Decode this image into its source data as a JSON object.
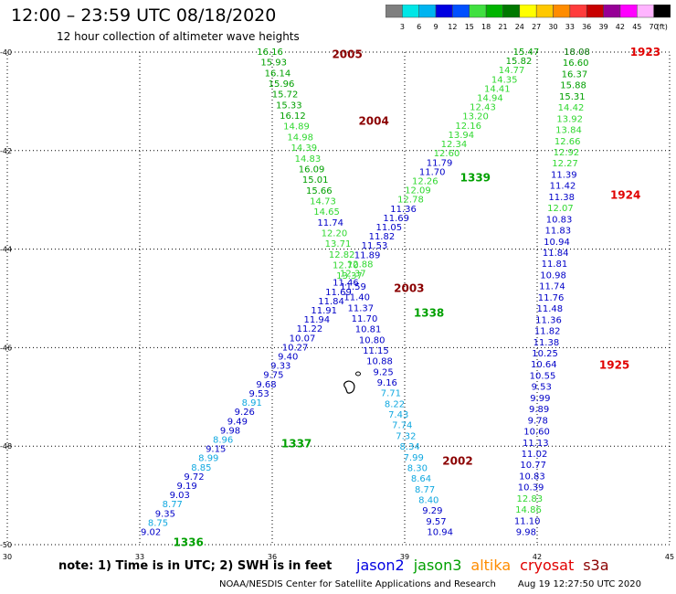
{
  "title": "12:00 – 23:59 UTC 08/18/2020",
  "subtitle": "12 hour collection of altimeter wave heights",
  "color_scale": {
    "colors": [
      "#7f7f7f",
      "#00e6e6",
      "#00b4f0",
      "#0000e1",
      "#0050ff",
      "#40e040",
      "#00b400",
      "#007800",
      "#ffff00",
      "#ffc800",
      "#ff8c00",
      "#ff3c3c",
      "#c80000",
      "#960096",
      "#ff00ff",
      "#ffb4ff",
      "#000000"
    ],
    "ticks": [
      "3",
      "6",
      "9",
      "12",
      "15",
      "18",
      "21",
      "24",
      "27",
      "30",
      "33",
      "36",
      "39",
      "42",
      "45",
      "70",
      "(ft)"
    ]
  },
  "axes": {
    "lat_labels": [
      "-40",
      "-42",
      "-44",
      "-46",
      "-48",
      "-50"
    ],
    "lon_labels": [
      "30",
      "33",
      "36",
      "39",
      "42",
      "45"
    ]
  },
  "note": "note: 1) Time is in UTC; 2) SWH is in feet",
  "legend": [
    {
      "name": "jason2",
      "color": "#0000e1"
    },
    {
      "name": "jason3",
      "color": "#00a000"
    },
    {
      "name": "altika",
      "color": "#ff8c00"
    },
    {
      "name": "cryosat",
      "color": "#e00000"
    },
    {
      "name": "s3a",
      "color": "#8b0000"
    }
  ],
  "footer": {
    "credit": "NOAA/NESDIS Center for Satellite Applications and Research",
    "timestamp": "Aug 19 12:27:50 UTC 2020"
  },
  "tracks": [
    {
      "name": "pass-2005-2003-2002",
      "values": [
        "16.16",
        "15.93",
        "16.14",
        "15.96",
        "15.72",
        "15.33",
        "16.12",
        "14.89",
        "14.98",
        "14.39",
        "14.83",
        "16.09",
        "15.01",
        "15.66",
        "14.73",
        "14.65",
        "11.74",
        "12.20",
        "13.71",
        "12.82",
        "12.70",
        "13.37",
        "11.59",
        "11.40",
        "11.37",
        "11.70",
        "10.81",
        "10.80",
        "11.15",
        "10.88",
        "9.25",
        "9.16",
        "7.71",
        "8.22",
        "7.43",
        "7.74",
        "7.32",
        "8.34",
        "7.99",
        "8.30",
        "8.64",
        "8.77",
        "8.40",
        "9.29",
        "9.57",
        "10.94"
      ],
      "start": {
        "lon": 35.95,
        "lat": -40.0
      },
      "end": {
        "lon": 39.8,
        "lat": -49.75
      }
    },
    {
      "name": "pass-1336-1338-1339",
      "values": [
        "15.47",
        "15.82",
        "14.77",
        "14.35",
        "14.41",
        "14.94",
        "12.43",
        "13.20",
        "12.16",
        "13.94",
        "12.34",
        "12.60",
        "11.79",
        "11.70",
        "12.26",
        "12.09",
        "12.78",
        "11.36",
        "11.69",
        "11.05",
        "11.82",
        "11.53",
        "11.89",
        "12.88",
        "12.37",
        "11.46",
        "11.69",
        "11.84",
        "11.91",
        "11.94",
        "11.22",
        "10.07",
        "10.27",
        "9.40",
        "9.33",
        "9.75",
        "9.68",
        "9.53",
        "8.91",
        "9.26",
        "9.49",
        "9.98",
        "8.96",
        "9.15",
        "8.99",
        "8.85",
        "9.72",
        "9.19",
        "9.03",
        "8.77",
        "9.35",
        "8.75",
        "9.02"
      ],
      "start": {
        "lon": 41.75,
        "lat": -40.0
      },
      "end": {
        "lon": 33.25,
        "lat": -49.75
      }
    },
    {
      "name": "pass-1923-1924-1925",
      "values": [
        "18.08",
        "16.60",
        "16.37",
        "15.88",
        "15.31",
        "14.42",
        "13.92",
        "13.84",
        "12.66",
        "12.92",
        "12.27",
        "11.39",
        "11.42",
        "11.38",
        "12.07",
        "10.83",
        "11.83",
        "10.94",
        "11.84",
        "11.81",
        "10.98",
        "11.74",
        "11.76",
        "11.48",
        "11.36",
        "11.82",
        "11.38",
        "10.25",
        "10.64",
        "10.55",
        "9.53",
        "9.99",
        "9.89",
        "9.78",
        "10.60",
        "11.13",
        "11.02",
        "10.77",
        "10.83",
        "10.39",
        "12.83",
        "14.86",
        "11.10",
        "9.98"
      ],
      "start": {
        "lon": 42.9,
        "lat": -40.0
      },
      "end": {
        "lon": 41.75,
        "lat": -49.75
      }
    }
  ],
  "pass_labels": [
    {
      "text": "2005",
      "lon": 37.7,
      "lat": -40.05,
      "color": "#8b0000"
    },
    {
      "text": "2004",
      "lon": 38.3,
      "lat": -41.4,
      "color": "#8b0000"
    },
    {
      "text": "2003",
      "lon": 39.1,
      "lat": -44.8,
      "color": "#8b0000"
    },
    {
      "text": "2002",
      "lon": 40.2,
      "lat": -48.3,
      "color": "#8b0000"
    },
    {
      "text": "1339",
      "lon": 40.6,
      "lat": -42.55,
      "color": "#00a000"
    },
    {
      "text": "1338",
      "lon": 39.55,
      "lat": -45.3,
      "color": "#00a000"
    },
    {
      "text": "1337",
      "lon": 36.55,
      "lat": -47.95,
      "color": "#00a000"
    },
    {
      "text": "1336",
      "lon": 34.1,
      "lat": -49.95,
      "color": "#00a000"
    },
    {
      "text": "1923",
      "lon": 44.45,
      "lat": -40.0,
      "color": "#e00000"
    },
    {
      "text": "1924",
      "lon": 44.0,
      "lat": -42.9,
      "color": "#e00000"
    },
    {
      "text": "1925",
      "lon": 43.75,
      "lat": -46.35,
      "color": "#e00000"
    }
  ]
}
